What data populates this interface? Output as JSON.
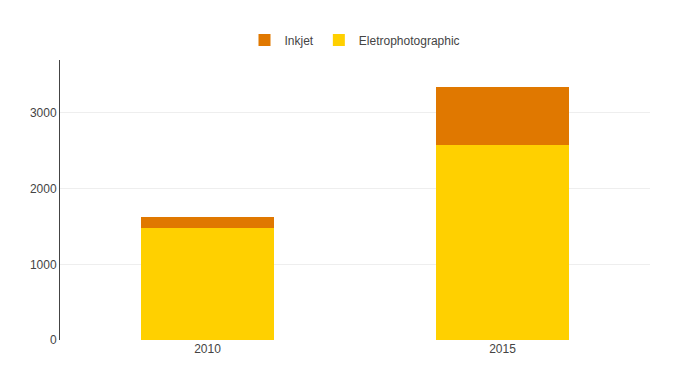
{
  "chart_data": {
    "type": "bar",
    "stacked": true,
    "categories": [
      "2010",
      "2015"
    ],
    "series": [
      {
        "name": "Eletrophotographic",
        "color": "#FFD000",
        "values": [
          1480,
          2580
        ]
      },
      {
        "name": "Inkjet",
        "color": "#E07800",
        "values": [
          150,
          760
        ]
      }
    ],
    "ylim": [
      0,
      3700
    ],
    "yticks": [
      0,
      1000,
      2000,
      3000
    ],
    "grid": true,
    "legend": "top"
  }
}
